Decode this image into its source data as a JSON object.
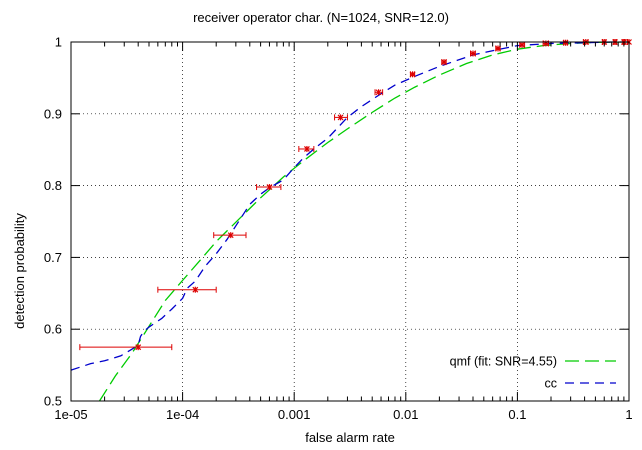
{
  "chart_data": {
    "type": "line",
    "title": "receiver operator char. (N=1024, SNR=12.0)",
    "xlabel": "false alarm rate",
    "ylabel": "detection probability",
    "xscale": "log",
    "xlim": [
      1e-05,
      1
    ],
    "ylim": [
      0.5,
      1
    ],
    "grid": true,
    "legend_position": "bottom-right",
    "x_ticks": [
      {
        "value": 1e-05,
        "label": "1e-05"
      },
      {
        "value": 0.0001,
        "label": "1e-04"
      },
      {
        "value": 0.001,
        "label": "0.001"
      },
      {
        "value": 0.01,
        "label": "0.01"
      },
      {
        "value": 0.1,
        "label": "0.1"
      },
      {
        "value": 1,
        "label": "1"
      }
    ],
    "y_ticks": [
      {
        "value": 0.5,
        "label": "0.5"
      },
      {
        "value": 0.6,
        "label": "0.6"
      },
      {
        "value": 0.7,
        "label": "0.7"
      },
      {
        "value": 0.8,
        "label": "0.8"
      },
      {
        "value": 0.9,
        "label": "0.9"
      },
      {
        "value": 1,
        "label": "1"
      }
    ],
    "series": [
      {
        "name": "qmf (fit: SNR=4.55)",
        "color": "#00cc00",
        "style": "dashed",
        "x": [
          1.8e-05,
          2.5e-05,
          3.5e-05,
          5e-05,
          7e-05,
          0.0001,
          0.00014,
          0.0002,
          0.0003,
          0.0005,
          0.0008,
          0.0012,
          0.002,
          0.003,
          0.005,
          0.008,
          0.012,
          0.02,
          0.035,
          0.06,
          0.1,
          0.17,
          0.3,
          0.5,
          1
        ],
        "y": [
          0.5,
          0.535,
          0.566,
          0.604,
          0.64,
          0.668,
          0.694,
          0.722,
          0.749,
          0.783,
          0.812,
          0.834,
          0.86,
          0.879,
          0.902,
          0.922,
          0.937,
          0.954,
          0.97,
          0.982,
          0.99,
          0.995,
          0.998,
          0.9995,
          1
        ]
      },
      {
        "name": "cc",
        "color": "#0000cc",
        "style": "dashed",
        "x": [
          1e-05,
          1.5e-05,
          2e-05,
          2.8e-05,
          3.5e-05,
          4e-05,
          4.2e-05,
          4.5e-05,
          5e-05,
          6.5e-05,
          8e-05,
          0.0001,
          0.00011,
          0.00013,
          0.00016,
          0.0002,
          0.00025,
          0.0003,
          0.00035,
          0.0004,
          0.0005,
          0.0006,
          0.0008,
          0.001,
          0.0012,
          0.0015,
          0.002,
          0.0025,
          0.003,
          0.004,
          0.006,
          0.008,
          0.012,
          0.02,
          0.04,
          0.07,
          0.1,
          0.2,
          0.4,
          0.7,
          1
        ],
        "y": [
          0.543,
          0.552,
          0.556,
          0.563,
          0.572,
          0.578,
          0.59,
          0.597,
          0.603,
          0.615,
          0.628,
          0.643,
          0.657,
          0.667,
          0.688,
          0.705,
          0.725,
          0.744,
          0.76,
          0.774,
          0.788,
          0.797,
          0.808,
          0.825,
          0.838,
          0.851,
          0.866,
          0.882,
          0.895,
          0.91,
          0.928,
          0.94,
          0.952,
          0.966,
          0.982,
          0.99,
          0.995,
          0.998,
          0.999,
          1,
          1
        ]
      }
    ],
    "measurements": {
      "color": "#dd0000",
      "x": [
        4e-05,
        0.00013,
        0.00027,
        0.0006,
        0.0013,
        0.0026,
        0.0057,
        0.0115,
        0.022,
        0.04,
        0.067,
        0.11,
        0.18,
        0.27,
        0.41,
        0.6,
        0.75,
        0.9,
        1
      ],
      "y": [
        0.575,
        0.655,
        0.731,
        0.798,
        0.851,
        0.895,
        0.93,
        0.955,
        0.972,
        0.984,
        0.991,
        0.996,
        0.998,
        0.999,
        1,
        1,
        1,
        1,
        1
      ],
      "x_err": [
        [
          1.2e-05,
          8e-05
        ],
        [
          6e-05,
          0.0002
        ],
        [
          0.00019,
          0.00037
        ],
        [
          0.00046,
          0.00076
        ],
        [
          0.0011,
          0.0015
        ],
        [
          0.0023,
          0.003
        ],
        [
          0.0053,
          0.0062
        ],
        [
          0.011,
          0.012
        ],
        [
          0.021,
          0.023
        ],
        [
          0.038,
          0.042
        ],
        [
          0.064,
          0.07
        ],
        [
          0.105,
          0.116
        ],
        [
          0.17,
          0.19
        ],
        [
          0.26,
          0.28
        ],
        [
          0.39,
          0.43
        ],
        [
          0.58,
          0.62
        ],
        [
          0.73,
          0.77
        ],
        [
          0.88,
          0.92
        ],
        [
          0.97,
          1
        ]
      ]
    }
  }
}
